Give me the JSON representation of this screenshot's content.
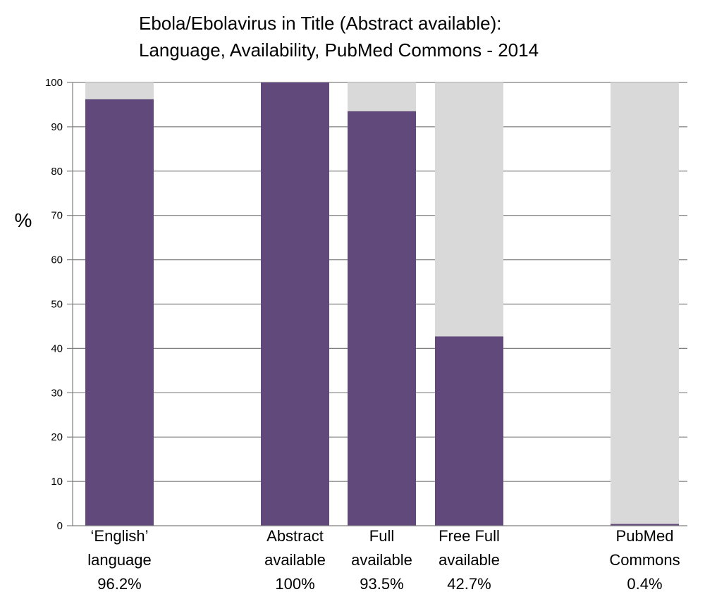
{
  "chart_data": {
    "type": "bar",
    "stacked": true,
    "title_lines": [
      "Ebola/Ebolavirus in Title (Abstract available):",
      "Language, Availability, PubMed Commons - 2014"
    ],
    "ylabel": "%",
    "ylim": [
      0,
      100
    ],
    "yticks": [
      0,
      10,
      20,
      30,
      40,
      50,
      60,
      70,
      80,
      90,
      100
    ],
    "grid": true,
    "categories": [
      {
        "lines": [
          "‘English’",
          "language",
          "96.2%"
        ],
        "value": 96.2
      },
      {
        "lines": [
          "Abstract",
          "available",
          "100%"
        ],
        "value": 100
      },
      {
        "lines": [
          "Full",
          "available",
          "93.5%"
        ],
        "value": 93.5
      },
      {
        "lines": [
          "Free Full",
          "available",
          "42.7%"
        ],
        "value": 42.7
      },
      {
        "lines": [
          "PubMed",
          "Commons",
          "0.4%"
        ],
        "value": 0.4
      }
    ],
    "colors": {
      "value": "#614a7b",
      "remainder": "#d9d9d9",
      "grid": "#7f7f7f"
    }
  }
}
